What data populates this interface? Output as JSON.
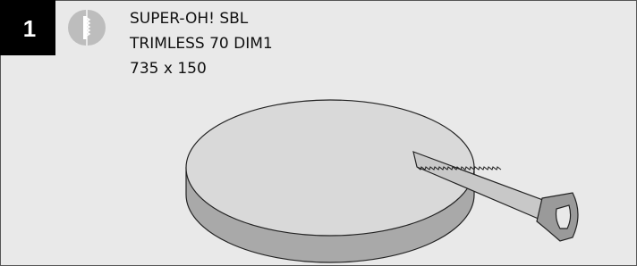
{
  "step": {
    "number": "1",
    "lines": [
      "SUPER-OH! SBL",
      "TRIMLESS 70 DIM1",
      "735 x 150"
    ]
  }
}
